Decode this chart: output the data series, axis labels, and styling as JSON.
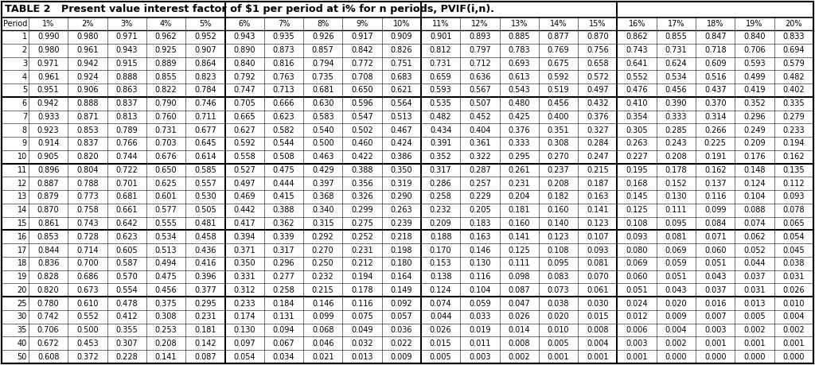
{
  "title": "TABLE 2   Present value interest factor of $1 per period at i% for n periods, PVIF(i,n).",
  "columns": [
    "Period",
    "1%",
    "2%",
    "3%",
    "4%",
    "5%",
    "6%",
    "7%",
    "8%",
    "9%",
    "10%",
    "11%",
    "12%",
    "13%",
    "14%",
    "15%",
    "16%",
    "17%",
    "18%",
    "19%",
    "20%"
  ],
  "rows": [
    [
      1,
      0.99,
      0.98,
      0.971,
      0.962,
      0.952,
      0.943,
      0.935,
      0.926,
      0.917,
      0.909,
      0.901,
      0.893,
      0.885,
      0.877,
      0.87,
      0.862,
      0.855,
      0.847,
      0.84,
      0.833
    ],
    [
      2,
      0.98,
      0.961,
      0.943,
      0.925,
      0.907,
      0.89,
      0.873,
      0.857,
      0.842,
      0.826,
      0.812,
      0.797,
      0.783,
      0.769,
      0.756,
      0.743,
      0.731,
      0.718,
      0.706,
      0.694
    ],
    [
      3,
      0.971,
      0.942,
      0.915,
      0.889,
      0.864,
      0.84,
      0.816,
      0.794,
      0.772,
      0.751,
      0.731,
      0.712,
      0.693,
      0.675,
      0.658,
      0.641,
      0.624,
      0.609,
      0.593,
      0.579
    ],
    [
      4,
      0.961,
      0.924,
      0.888,
      0.855,
      0.823,
      0.792,
      0.763,
      0.735,
      0.708,
      0.683,
      0.659,
      0.636,
      0.613,
      0.592,
      0.572,
      0.552,
      0.534,
      0.516,
      0.499,
      0.482
    ],
    [
      5,
      0.951,
      0.906,
      0.863,
      0.822,
      0.784,
      0.747,
      0.713,
      0.681,
      0.65,
      0.621,
      0.593,
      0.567,
      0.543,
      0.519,
      0.497,
      0.476,
      0.456,
      0.437,
      0.419,
      0.402
    ],
    [
      6,
      0.942,
      0.888,
      0.837,
      0.79,
      0.746,
      0.705,
      0.666,
      0.63,
      0.596,
      0.564,
      0.535,
      0.507,
      0.48,
      0.456,
      0.432,
      0.41,
      0.39,
      0.37,
      0.352,
      0.335
    ],
    [
      7,
      0.933,
      0.871,
      0.813,
      0.76,
      0.711,
      0.665,
      0.623,
      0.583,
      0.547,
      0.513,
      0.482,
      0.452,
      0.425,
      0.4,
      0.376,
      0.354,
      0.333,
      0.314,
      0.296,
      0.279
    ],
    [
      8,
      0.923,
      0.853,
      0.789,
      0.731,
      0.677,
      0.627,
      0.582,
      0.54,
      0.502,
      0.467,
      0.434,
      0.404,
      0.376,
      0.351,
      0.327,
      0.305,
      0.285,
      0.266,
      0.249,
      0.233
    ],
    [
      9,
      0.914,
      0.837,
      0.766,
      0.703,
      0.645,
      0.592,
      0.544,
      0.5,
      0.46,
      0.424,
      0.391,
      0.361,
      0.333,
      0.308,
      0.284,
      0.263,
      0.243,
      0.225,
      0.209,
      0.194
    ],
    [
      10,
      0.905,
      0.82,
      0.744,
      0.676,
      0.614,
      0.558,
      0.508,
      0.463,
      0.422,
      0.386,
      0.352,
      0.322,
      0.295,
      0.27,
      0.247,
      0.227,
      0.208,
      0.191,
      0.176,
      0.162
    ],
    [
      11,
      0.896,
      0.804,
      0.722,
      0.65,
      0.585,
      0.527,
      0.475,
      0.429,
      0.388,
      0.35,
      0.317,
      0.287,
      0.261,
      0.237,
      0.215,
      0.195,
      0.178,
      0.162,
      0.148,
      0.135
    ],
    [
      12,
      0.887,
      0.788,
      0.701,
      0.625,
      0.557,
      0.497,
      0.444,
      0.397,
      0.356,
      0.319,
      0.286,
      0.257,
      0.231,
      0.208,
      0.187,
      0.168,
      0.152,
      0.137,
      0.124,
      0.112
    ],
    [
      13,
      0.879,
      0.773,
      0.681,
      0.601,
      0.53,
      0.469,
      0.415,
      0.368,
      0.326,
      0.29,
      0.258,
      0.229,
      0.204,
      0.182,
      0.163,
      0.145,
      0.13,
      0.116,
      0.104,
      0.093
    ],
    [
      14,
      0.87,
      0.758,
      0.661,
      0.577,
      0.505,
      0.442,
      0.388,
      0.34,
      0.299,
      0.263,
      0.232,
      0.205,
      0.181,
      0.16,
      0.141,
      0.125,
      0.111,
      0.099,
      0.088,
      0.078
    ],
    [
      15,
      0.861,
      0.743,
      0.642,
      0.555,
      0.481,
      0.417,
      0.362,
      0.315,
      0.275,
      0.239,
      0.209,
      0.183,
      0.16,
      0.14,
      0.123,
      0.108,
      0.095,
      0.084,
      0.074,
      0.065
    ],
    [
      16,
      0.853,
      0.728,
      0.623,
      0.534,
      0.458,
      0.394,
      0.339,
      0.292,
      0.252,
      0.218,
      0.188,
      0.163,
      0.141,
      0.123,
      0.107,
      0.093,
      0.081,
      0.071,
      0.062,
      0.054
    ],
    [
      17,
      0.844,
      0.714,
      0.605,
      0.513,
      0.436,
      0.371,
      0.317,
      0.27,
      0.231,
      0.198,
      0.17,
      0.146,
      0.125,
      0.108,
      0.093,
      0.08,
      0.069,
      0.06,
      0.052,
      0.045
    ],
    [
      18,
      0.836,
      0.7,
      0.587,
      0.494,
      0.416,
      0.35,
      0.296,
      0.25,
      0.212,
      0.18,
      0.153,
      0.13,
      0.111,
      0.095,
      0.081,
      0.069,
      0.059,
      0.051,
      0.044,
      0.038
    ],
    [
      19,
      0.828,
      0.686,
      0.57,
      0.475,
      0.396,
      0.331,
      0.277,
      0.232,
      0.194,
      0.164,
      0.138,
      0.116,
      0.098,
      0.083,
      0.07,
      0.06,
      0.051,
      0.043,
      0.037,
      0.031
    ],
    [
      20,
      0.82,
      0.673,
      0.554,
      0.456,
      0.377,
      0.312,
      0.258,
      0.215,
      0.178,
      0.149,
      0.124,
      0.104,
      0.087,
      0.073,
      0.061,
      0.051,
      0.043,
      0.037,
      0.031,
      0.026
    ],
    [
      25,
      0.78,
      0.61,
      0.478,
      0.375,
      0.295,
      0.233,
      0.184,
      0.146,
      0.116,
      0.092,
      0.074,
      0.059,
      0.047,
      0.038,
      0.03,
      0.024,
      0.02,
      0.016,
      0.013,
      0.01
    ],
    [
      30,
      0.742,
      0.552,
      0.412,
      0.308,
      0.231,
      0.174,
      0.131,
      0.099,
      0.075,
      0.057,
      0.044,
      0.033,
      0.026,
      0.02,
      0.015,
      0.012,
      0.009,
      0.007,
      0.005,
      0.004
    ],
    [
      35,
      0.706,
      0.5,
      0.355,
      0.253,
      0.181,
      0.13,
      0.094,
      0.068,
      0.049,
      0.036,
      0.026,
      0.019,
      0.014,
      0.01,
      0.008,
      0.006,
      0.004,
      0.003,
      0.002,
      0.002
    ],
    [
      40,
      0.672,
      0.453,
      0.307,
      0.208,
      0.142,
      0.097,
      0.067,
      0.046,
      0.032,
      0.022,
      0.015,
      0.011,
      0.008,
      0.005,
      0.004,
      0.003,
      0.002,
      0.001,
      0.001,
      0.001
    ],
    [
      50,
      0.608,
      0.372,
      0.228,
      0.141,
      0.087,
      0.054,
      0.034,
      0.021,
      0.013,
      0.009,
      0.005,
      0.003,
      0.002,
      0.001,
      0.001,
      0.001,
      0.0,
      0.0,
      0.0,
      0.0
    ]
  ],
  "group_separators_after_period": [
    5,
    10,
    15,
    20
  ],
  "thick_col_seps_after_col_idx": [
    5,
    10,
    15
  ],
  "bg_color": "#ffffff",
  "border_color": "#000000",
  "font_size": 7.0,
  "header_font_size": 7.0,
  "title_font_size": 9.2
}
